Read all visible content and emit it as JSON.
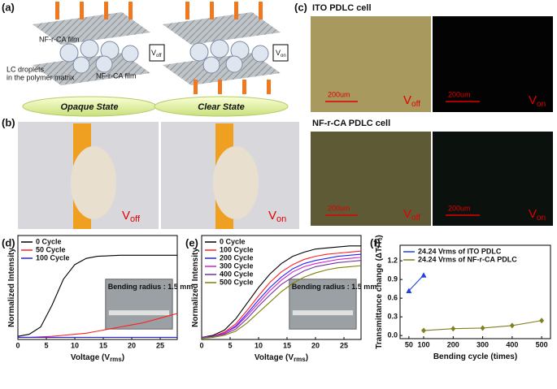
{
  "panel_labels": [
    "(a)",
    "(b)",
    "(c)",
    "(d)",
    "(e)",
    "(f)"
  ],
  "figure_a": {
    "film_top": "NF-r-CA film",
    "droplets": [
      "LC droplets",
      "in the polymer matrix"
    ],
    "film_bottom": "NF-r-CA film",
    "v_off": {
      "main": "V",
      "sub": "off"
    },
    "v_on": {
      "main": "V",
      "sub": "on"
    },
    "state_left": "Opaque State",
    "state_right": "Clear State"
  },
  "figure_b": {
    "v_off": {
      "main": "V",
      "sub": "off"
    },
    "v_on": {
      "main": "V",
      "sub": "on"
    }
  },
  "figure_c": {
    "row_1": "ITO PDLC cell",
    "row_2": "NF-r-CA PDLC cell",
    "scale": "200um",
    "v_off": {
      "main": "V",
      "sub": "off"
    },
    "v_on": {
      "main": "V",
      "sub": "on"
    }
  },
  "chart_data": [
    {
      "type": "line",
      "y_label": "Normalized Intensity",
      "x_label": {
        "main": "Voltage (V",
        "sub": "rms",
        "end": ")"
      },
      "x": [
        0,
        2,
        4,
        6,
        8,
        10,
        12,
        14,
        16,
        18,
        20,
        22,
        24,
        26,
        28
      ],
      "xlim": [
        0,
        28
      ],
      "xticks": [
        0,
        5,
        10,
        15,
        20,
        25
      ],
      "ylim": [
        0,
        1
      ],
      "annotation": "Bending radius : 1.5 mm",
      "series": [
        {
          "name": "0 Cycle",
          "color": "#000000",
          "values": [
            0.03,
            0.05,
            0.12,
            0.33,
            0.58,
            0.72,
            0.78,
            0.8,
            0.805,
            0.81,
            0.81,
            0.81,
            0.81,
            0.81,
            0.81
          ]
        },
        {
          "name": "50 Cycle",
          "color": "#ff2020",
          "values": [
            0.02,
            0.02,
            0.025,
            0.03,
            0.04,
            0.05,
            0.06,
            0.08,
            0.1,
            0.12,
            0.14,
            0.16,
            0.19,
            0.22,
            0.25
          ]
        },
        {
          "name": "100 Cycle",
          "color": "#2020ff",
          "values": [
            0.02,
            0.02,
            0.02,
            0.02,
            0.02,
            0.02,
            0.02,
            0.02,
            0.02,
            0.02,
            0.02,
            0.02,
            0.02,
            0.02,
            0.02
          ]
        }
      ]
    },
    {
      "type": "line",
      "y_label": "Normalized Intensity",
      "x_label": {
        "main": "Voltage (V",
        "sub": "rms",
        "end": ")"
      },
      "x": [
        0,
        2,
        4,
        6,
        8,
        10,
        12,
        14,
        16,
        18,
        20,
        22,
        24,
        26,
        28
      ],
      "xlim": [
        0,
        28
      ],
      "xticks": [
        0,
        5,
        10,
        15,
        20,
        25
      ],
      "ylim": [
        0,
        1
      ],
      "annotation": "Bending radius : 1.5 mm",
      "series": [
        {
          "name": "0 Cycle",
          "color": "#000000",
          "values": [
            0.02,
            0.04,
            0.09,
            0.2,
            0.35,
            0.5,
            0.63,
            0.73,
            0.8,
            0.84,
            0.87,
            0.88,
            0.89,
            0.9,
            0.9
          ]
        },
        {
          "name": "100 Cycle",
          "color": "#ff2020",
          "values": [
            0.02,
            0.03,
            0.07,
            0.15,
            0.28,
            0.42,
            0.55,
            0.65,
            0.72,
            0.77,
            0.8,
            0.82,
            0.83,
            0.84,
            0.85
          ]
        },
        {
          "name": "200 Cycle",
          "color": "#2020ff",
          "values": [
            0.02,
            0.03,
            0.06,
            0.13,
            0.25,
            0.38,
            0.5,
            0.6,
            0.68,
            0.73,
            0.76,
            0.78,
            0.8,
            0.81,
            0.82
          ]
        },
        {
          "name": "300 Cycle",
          "color": "#d020d0",
          "values": [
            0.02,
            0.03,
            0.06,
            0.12,
            0.23,
            0.35,
            0.47,
            0.57,
            0.65,
            0.7,
            0.73,
            0.75,
            0.77,
            0.78,
            0.79
          ]
        },
        {
          "name": "400 Cycle",
          "color": "#7030a0",
          "values": [
            0.02,
            0.03,
            0.05,
            0.1,
            0.2,
            0.32,
            0.43,
            0.53,
            0.6,
            0.66,
            0.7,
            0.72,
            0.74,
            0.75,
            0.76
          ]
        },
        {
          "name": "500 Cycle",
          "color": "#808000",
          "values": [
            0.01,
            0.02,
            0.04,
            0.08,
            0.16,
            0.26,
            0.36,
            0.46,
            0.54,
            0.6,
            0.64,
            0.67,
            0.69,
            0.7,
            0.71
          ]
        }
      ]
    },
    {
      "type": "line",
      "markers": true,
      "y_label": "Transmittance change (ΔT/T",
      "y_label_sub": "0",
      "y_label_end": ")",
      "x_label": {
        "main": "Bending cycle (times)"
      },
      "xlim": [
        20,
        530
      ],
      "xticks": [
        50,
        100,
        200,
        300,
        400,
        500
      ],
      "ylim": [
        -0.05,
        1.45
      ],
      "yticks": [
        {
          "value": 0,
          "label": "0.0"
        },
        0.3,
        0.6,
        0.9,
        1.2
      ],
      "series": [
        {
          "name": "24.24 Vrms of ITO PDLC",
          "color": "#2040e0",
          "marker": "triangle",
          "x": [
            50,
            100
          ],
          "values": [
            0.72,
            0.97
          ]
        },
        {
          "name": "24.24 Vrms of NF-r-CA PDLC",
          "color": "#808020",
          "marker": "diamond",
          "x": [
            100,
            200,
            300,
            400,
            500
          ],
          "values": [
            0.08,
            0.11,
            0.12,
            0.16,
            0.24
          ]
        }
      ]
    }
  ]
}
